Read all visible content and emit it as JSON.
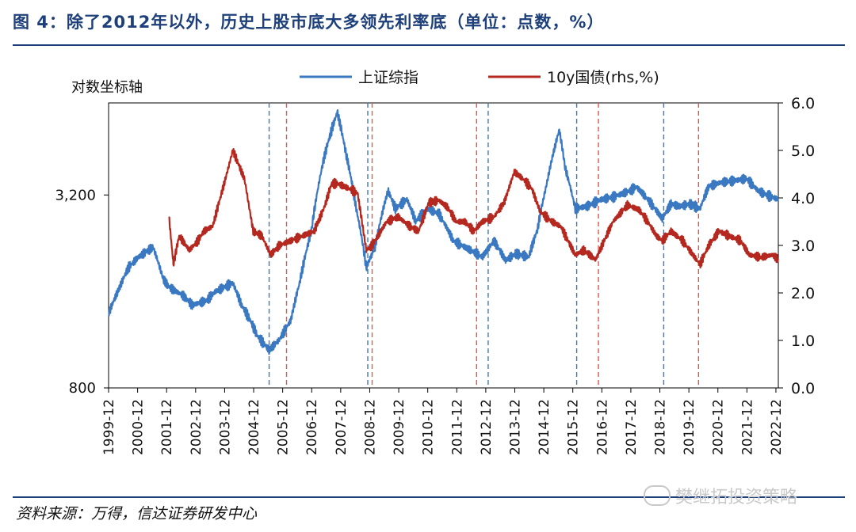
{
  "title": "图 4：除了2012年以外，历史上股市底大多领先利率底（单位：点数，%）",
  "source": "资料来源：万得，信达证券研发中心",
  "watermark": "樊继拓投资策略",
  "colors": {
    "accent": "#1d3f7a",
    "blue": "#3a78c2",
    "red": "#b5281f"
  },
  "chart_data": {
    "type": "line",
    "ylabel": "对数坐标轴",
    "legend": [
      {
        "name": "上证综指",
        "color": "#3a78c2"
      },
      {
        "name": "10y国债(rhs,%)",
        "color": "#b5281f"
      }
    ],
    "legend_position": "top",
    "x_range": [
      1999.917,
      2023.0
    ],
    "y_left": {
      "scale": "log",
      "range": [
        800,
        6200
      ],
      "ticks": [
        800,
        3200
      ],
      "tick_labels": [
        "800",
        "3,200"
      ]
    },
    "y_right": {
      "range": [
        0,
        6
      ],
      "ticks": [
        0,
        1,
        2,
        3,
        4,
        5,
        6
      ],
      "tick_labels": [
        "0.0",
        "1.0",
        "2.0",
        "3.0",
        "4.0",
        "5.0",
        "6.0"
      ]
    },
    "x_tick_labels": [
      "1999-12",
      "2000-12",
      "2001-12",
      "2002-12",
      "2003-12",
      "2004-12",
      "2005-12",
      "2006-12",
      "2007-12",
      "2008-12",
      "2009-12",
      "2010-12",
      "2011-12",
      "2012-12",
      "2013-12",
      "2014-12",
      "2015-12",
      "2016-12",
      "2017-12",
      "2018-12",
      "2019-12",
      "2020-12",
      "2021-12",
      "2022-12"
    ],
    "series": [
      {
        "name": "上证综指",
        "axis": "left",
        "x": [
          1999.92,
          2000.3,
          2000.6,
          2000.95,
          2001.45,
          2001.8,
          2002.0,
          2002.5,
          2002.8,
          2003.3,
          2003.6,
          2004.2,
          2004.5,
          2004.8,
          2005.05,
          2005.45,
          2005.8,
          2006.2,
          2006.5,
          2006.9,
          2007.35,
          2007.8,
          2008.1,
          2008.45,
          2008.8,
          2009.1,
          2009.55,
          2009.8,
          2010.2,
          2010.5,
          2010.9,
          2011.3,
          2011.8,
          2012.2,
          2012.8,
          2013.2,
          2013.6,
          2013.95,
          2014.4,
          2014.7,
          2015.0,
          2015.45,
          2015.65,
          2016.0,
          2016.4,
          2016.9,
          2017.3,
          2017.9,
          2018.1,
          2018.5,
          2019.0,
          2019.3,
          2019.6,
          2019.95,
          2020.3,
          2020.6,
          2021.0,
          2021.5,
          2021.9,
          2022.3,
          2022.6,
          2023.0
        ],
        "values": [
          1366,
          1650,
          1900,
          2050,
          2200,
          1750,
          1650,
          1550,
          1450,
          1500,
          1600,
          1700,
          1450,
          1300,
          1160,
          1050,
          1130,
          1300,
          1700,
          2450,
          4200,
          5800,
          4300,
          2900,
          1900,
          2200,
          3300,
          2900,
          3100,
          2650,
          2900,
          2800,
          2300,
          2200,
          2050,
          2300,
          2000,
          2100,
          2050,
          2500,
          3400,
          5100,
          3900,
          2900,
          2950,
          3100,
          3150,
          3300,
          3400,
          3100,
          2700,
          3000,
          2950,
          3000,
          2900,
          3400,
          3500,
          3550,
          3600,
          3300,
          3200,
          3100
        ]
      },
      {
        "name": "10y国债(rhs,%)",
        "axis": "right",
        "x": [
          2002.0,
          2002.15,
          2002.35,
          2002.7,
          2003.0,
          2003.2,
          2003.5,
          2003.9,
          2004.2,
          2004.6,
          2004.9,
          2005.2,
          2005.5,
          2005.8,
          2006.2,
          2006.6,
          2007.0,
          2007.35,
          2007.6,
          2007.8,
          2008.2,
          2008.5,
          2008.8,
          2009.0,
          2009.5,
          2009.9,
          2010.3,
          2010.6,
          2010.95,
          2011.3,
          2011.6,
          2011.9,
          2012.2,
          2012.5,
          2012.8,
          2013.2,
          2013.55,
          2013.9,
          2014.2,
          2014.5,
          2014.8,
          2015.2,
          2015.5,
          2016.0,
          2016.3,
          2016.7,
          2017.0,
          2017.3,
          2017.8,
          2018.2,
          2018.5,
          2018.8,
          2019.0,
          2019.3,
          2019.7,
          2020.3,
          2020.6,
          2020.95,
          2021.3,
          2021.7,
          2022.0,
          2022.4,
          2022.8,
          2023.0
        ],
        "values": [
          3.6,
          2.6,
          3.2,
          2.9,
          3.1,
          3.3,
          3.4,
          4.3,
          5.0,
          4.4,
          3.3,
          3.2,
          2.8,
          3.0,
          3.1,
          3.2,
          3.3,
          3.8,
          4.3,
          4.3,
          4.2,
          4.1,
          2.9,
          3.0,
          3.5,
          3.6,
          3.4,
          3.3,
          3.9,
          3.95,
          3.8,
          3.5,
          3.5,
          3.3,
          3.5,
          3.6,
          3.9,
          4.55,
          4.4,
          4.2,
          3.7,
          3.5,
          3.4,
          2.8,
          2.9,
          2.7,
          3.1,
          3.5,
          3.85,
          3.75,
          3.5,
          3.2,
          3.1,
          3.3,
          3.1,
          2.6,
          3.0,
          3.3,
          3.2,
          3.1,
          2.8,
          2.75,
          2.8,
          2.7
        ]
      }
    ],
    "vlines_blue": [
      2005.45,
      2008.85,
      2013.0,
      2016.05,
      2019.05
    ],
    "vlines_red": [
      2006.05,
      2009.0,
      2012.6,
      2016.8,
      2020.25
    ]
  }
}
